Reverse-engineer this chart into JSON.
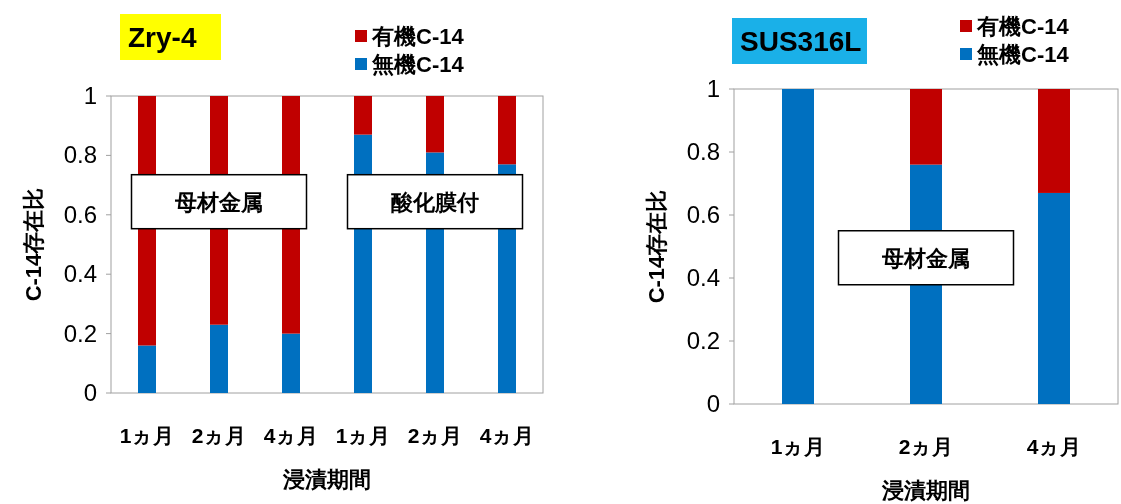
{
  "chart_data": [
    {
      "type": "bar",
      "title": "Zry-4",
      "stacked": true,
      "categories": [
        "1ヵ月",
        "2ヵ月",
        "4ヵ月",
        "1ヵ月",
        "2ヵ月",
        "4ヵ月"
      ],
      "xlabel": "浸漬期間",
      "ylabel": "C-14存在比",
      "ylim": [
        0,
        1
      ],
      "yticks": [
        0,
        0.2,
        0.4,
        0.6,
        0.8,
        1
      ],
      "legend": "top right",
      "annotations": [
        "母材金属",
        "酸化膜付"
      ],
      "series": [
        {
          "name": "無機C-14",
          "color": "#0070c0",
          "values": [
            0.16,
            0.23,
            0.2,
            0.87,
            0.81,
            0.77
          ]
        },
        {
          "name": "有機C-14",
          "color": "#c00000",
          "values": [
            0.84,
            0.77,
            0.8,
            0.13,
            0.19,
            0.23
          ]
        }
      ]
    },
    {
      "type": "bar",
      "title": "SUS316L",
      "stacked": true,
      "categories": [
        "1ヵ月",
        "2ヵ月",
        "4ヵ月"
      ],
      "xlabel": "浸漬期間",
      "ylabel": "C-14存在比",
      "ylim": [
        0,
        1
      ],
      "yticks": [
        0,
        0.2,
        0.4,
        0.6,
        0.8,
        1
      ],
      "legend": "top right",
      "annotations": [
        "母材金属"
      ],
      "series": [
        {
          "name": "無機C-14",
          "color": "#0070c0",
          "values": [
            1,
            0.76,
            0.67
          ]
        },
        {
          "name": "有機C-14",
          "color": "#c00000",
          "values": [
            0,
            0.24,
            0.33
          ]
        }
      ]
    }
  ]
}
